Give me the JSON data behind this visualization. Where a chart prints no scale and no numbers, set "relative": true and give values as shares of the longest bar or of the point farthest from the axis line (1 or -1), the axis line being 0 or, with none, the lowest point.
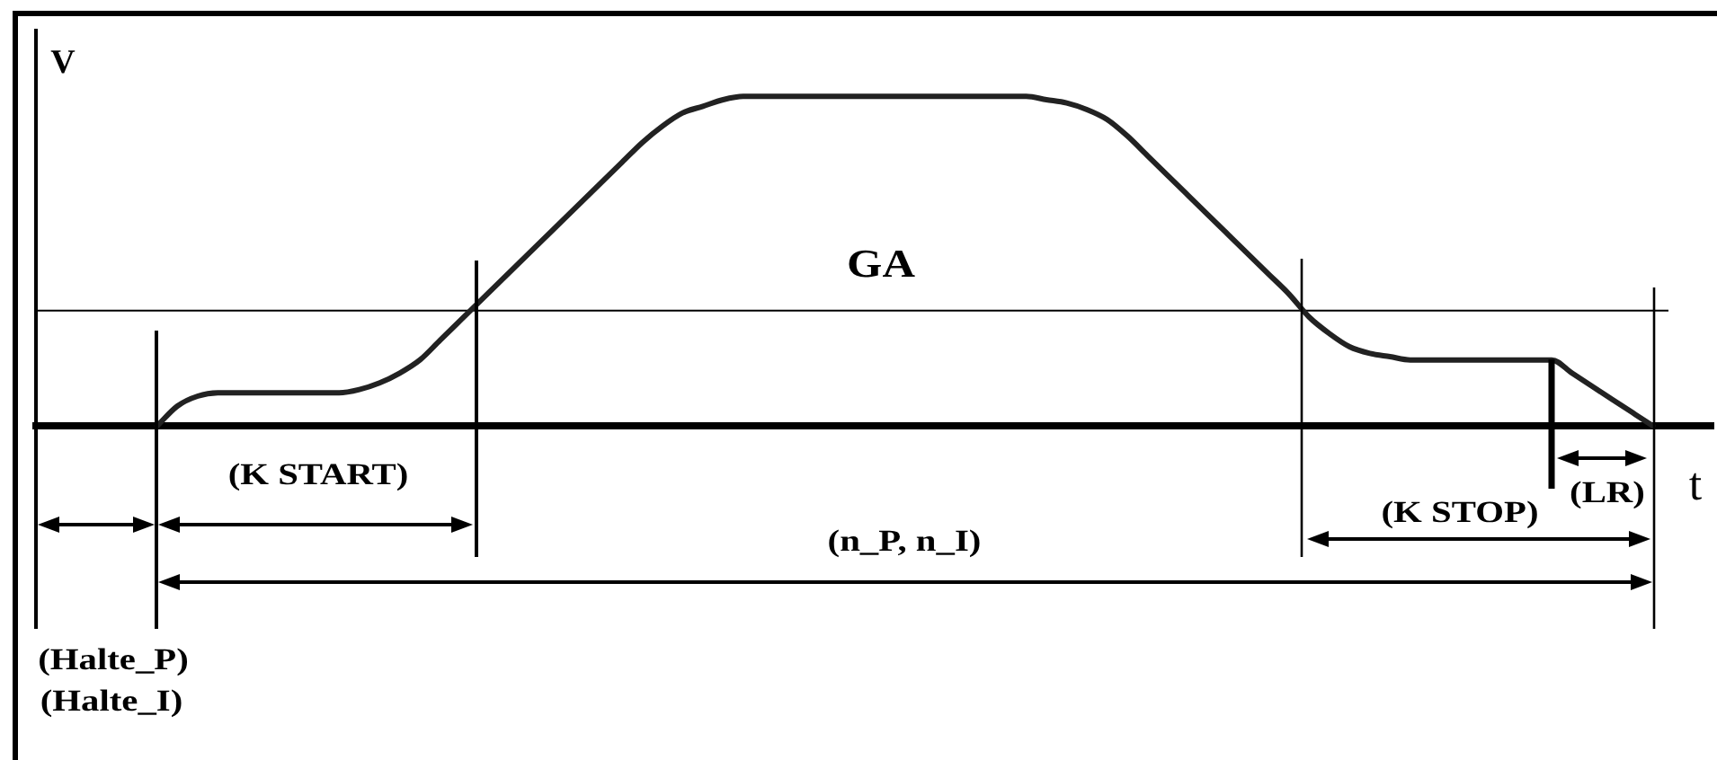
{
  "chart_data": {
    "type": "line",
    "xlabel": "t",
    "ylabel": "V",
    "relative": true,
    "tick_labels": false,
    "categories": [
      null,
      null,
      null,
      null,
      null,
      null,
      null,
      null,
      null,
      null,
      null,
      null,
      null,
      null,
      null,
      null,
      null,
      null,
      null,
      null,
      null,
      null,
      null,
      null,
      null,
      null,
      null,
      null,
      null,
      null,
      null,
      null,
      null,
      null,
      null,
      null,
      null,
      null,
      null,
      null,
      null,
      null,
      null,
      null,
      null,
      null,
      null,
      null,
      null,
      null,
      null,
      null,
      null,
      null,
      null,
      null,
      null,
      null,
      null,
      null,
      null,
      null,
      null,
      null,
      null,
      null,
      null,
      null,
      null,
      null,
      null,
      null,
      null,
      null,
      null,
      null,
      null,
      null,
      null,
      null,
      null,
      null,
      null,
      null
    ],
    "series": [
      {
        "color": "#222222",
        "values": [
          null,
          null,
          null,
          null,
          null,
          null,
          0,
          0.06,
          0.09,
          0.1,
          0.1,
          0.1,
          0.1,
          0.1,
          0.1,
          0.1,
          0.11,
          0.13,
          0.16,
          0.2,
          0.26,
          0.32,
          0.38,
          0.44,
          0.5,
          0.56,
          0.62,
          0.68,
          0.74,
          0.8,
          0.86,
          0.91,
          0.95,
          0.97,
          0.99,
          1,
          1,
          1,
          1,
          1,
          1,
          1,
          1,
          1,
          1,
          1,
          1,
          1,
          1,
          1,
          0.99,
          0.98,
          0.96,
          0.93,
          0.88,
          0.82,
          0.76,
          0.7,
          0.64,
          0.58,
          0.52,
          0.46,
          0.4,
          0.33,
          0.28,
          0.24,
          0.22,
          0.21,
          0.2,
          0.2,
          0.2,
          0.2,
          0.2,
          0.2,
          0.2,
          0.2,
          0.16,
          0.12,
          0.08,
          0.04,
          0,
          null,
          null,
          null
        ]
      }
    ],
    "ref_lines": [
      {
        "axis": "y",
        "value": 0.35,
        "label": "GA",
        "color": "#000000"
      }
    ],
    "annotations": [
      "(K START)",
      "(n_P, n_I)",
      "(K STOP)",
      "(LR)",
      "(Halte_P)",
      "(Halte_I)"
    ]
  }
}
